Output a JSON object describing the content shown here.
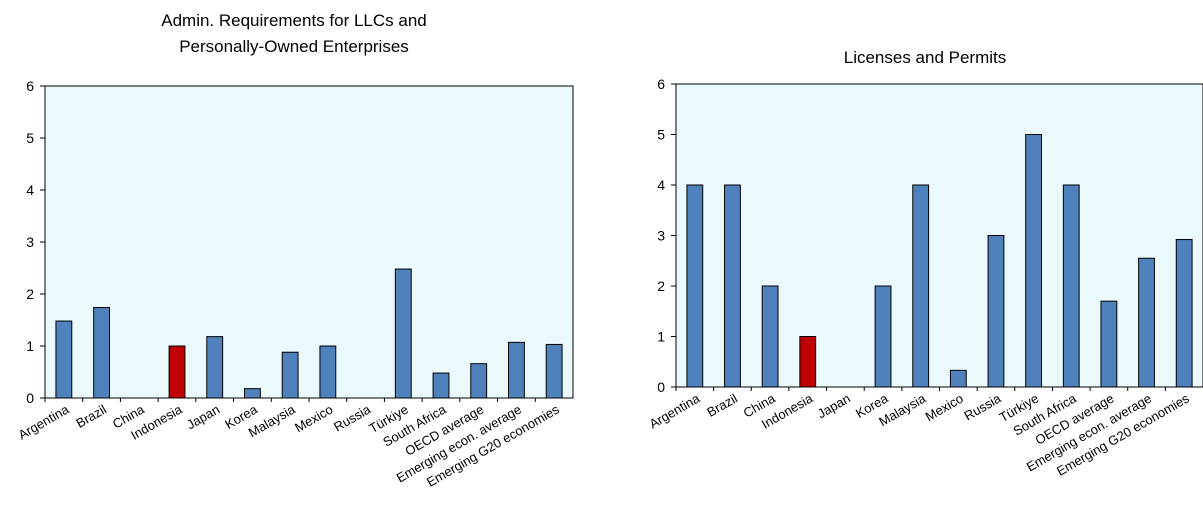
{
  "chart_data": [
    {
      "type": "bar",
      "title_lines": [
        "Admin. Requirements for LLCs and",
        "Personally-Owned Enterprises"
      ],
      "categories": [
        "Argentina",
        "Brazil",
        "China",
        "Indonesia",
        "Japan",
        "Korea",
        "Malaysia",
        "Mexico",
        "Russia",
        "Türkiye",
        "South Africa",
        "OECD average",
        "Emerging econ. average",
        "Emerging G20 economies"
      ],
      "values": [
        1.48,
        1.74,
        0,
        1.0,
        1.18,
        0.18,
        0.88,
        1.0,
        0,
        2.48,
        0.48,
        0.66,
        1.07,
        1.03
      ],
      "highlight": "Indonesia",
      "ylim": [
        0,
        6
      ],
      "yticks": [
        "0",
        "1",
        "2",
        "3",
        "4",
        "5",
        "6"
      ],
      "xlabel": "",
      "ylabel": "",
      "colors": {
        "bar": "#4F81BD",
        "highlight": "#C00000",
        "plot_bg": "#EAFAFC"
      }
    },
    {
      "type": "bar",
      "title_lines": [
        "Licenses and Permits"
      ],
      "categories": [
        "Argentina",
        "Brazil",
        "China",
        "Indonesia",
        "Japan",
        "Korea",
        "Malaysia",
        "Mexico",
        "Russia",
        "Türkiye",
        "South Africa",
        "OECD average",
        "Emerging econ. average",
        "Emerging G20 economies"
      ],
      "values": [
        4.0,
        4.0,
        2.0,
        1.0,
        0,
        2.0,
        4.0,
        0.33,
        3.0,
        5.0,
        4.0,
        1.7,
        2.55,
        2.92
      ],
      "highlight": "Indonesia",
      "ylim": [
        0,
        6
      ],
      "yticks": [
        "0",
        "1",
        "2",
        "3",
        "4",
        "5",
        "6"
      ],
      "xlabel": "",
      "ylabel": "",
      "colors": {
        "bar": "#4F81BD",
        "highlight": "#C00000",
        "plot_bg": "#EAFAFC"
      }
    }
  ]
}
